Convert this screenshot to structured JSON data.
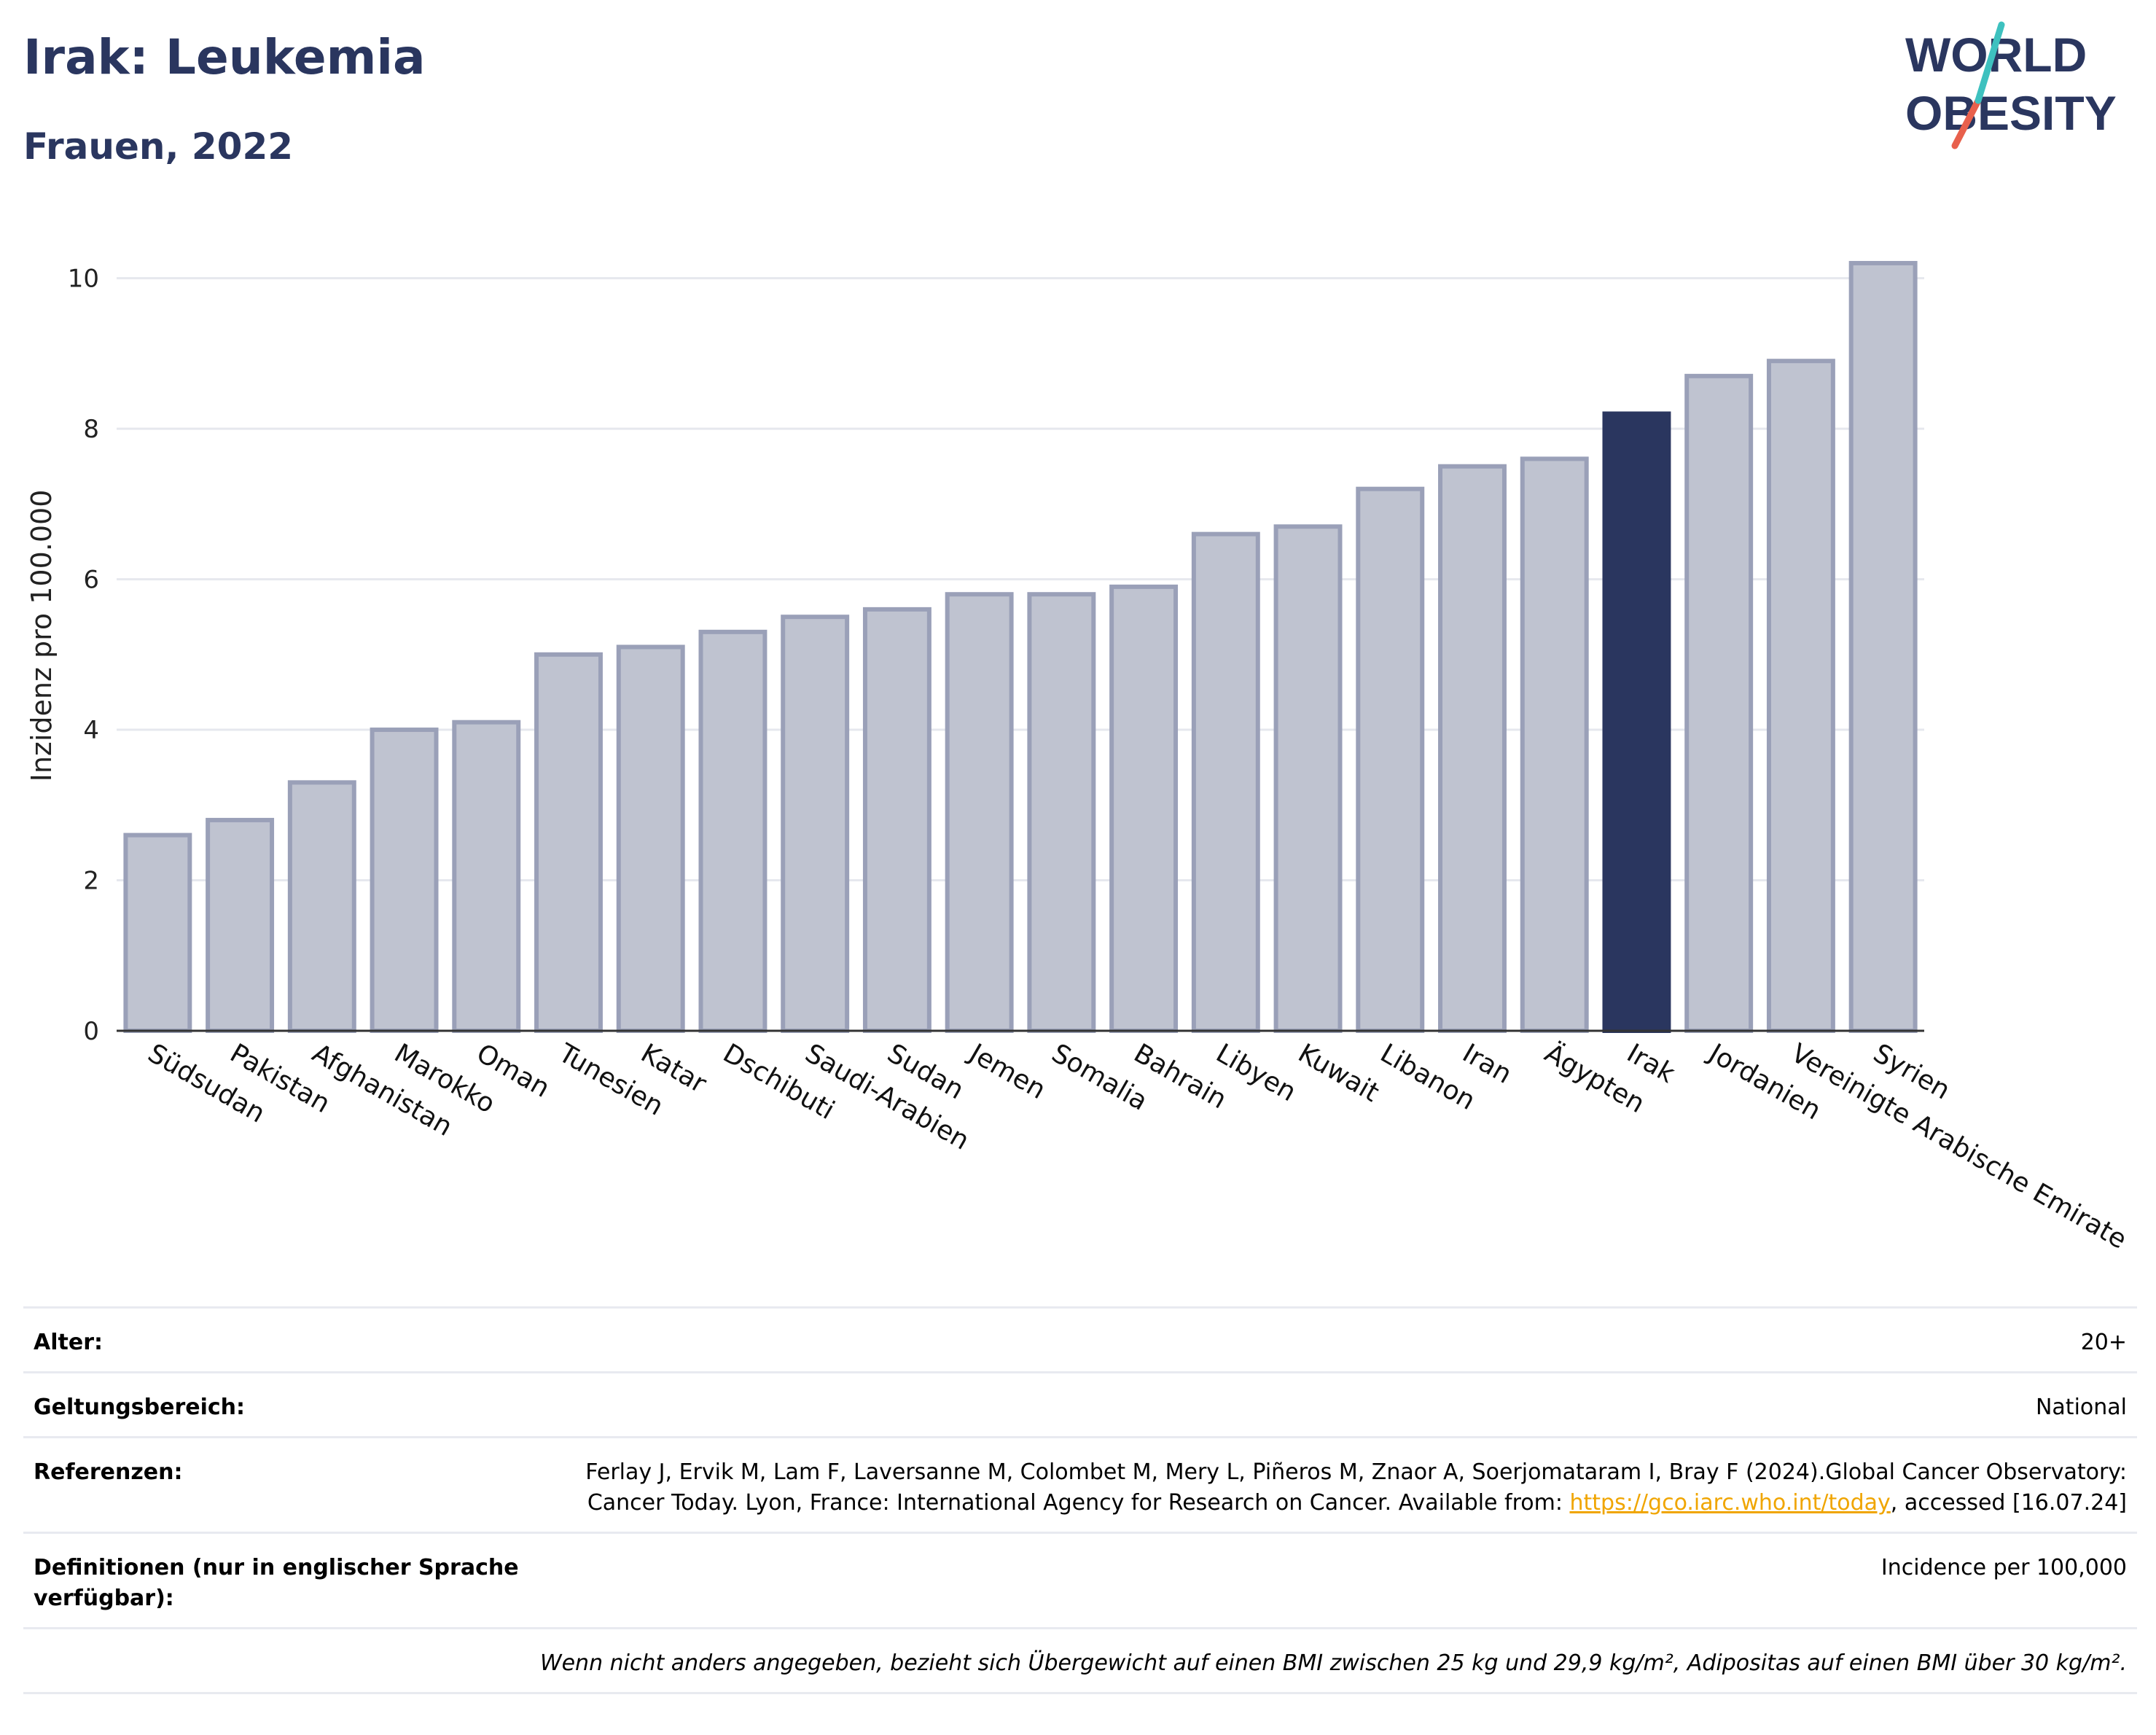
{
  "header": {
    "title": "Irak: Leukemia",
    "subtitle": "Frauen, 2022"
  },
  "logo": {
    "line1": "WORLD",
    "line2": "OBESITY",
    "colors": {
      "text": "#2a365f",
      "slash_teal": "#3ec1bf",
      "slash_red": "#e8604c"
    }
  },
  "chart_data": {
    "type": "bar",
    "categories": [
      "Südsudan",
      "Pakistan",
      "Afghanistan",
      "Marokko",
      "Oman",
      "Tunesien",
      "Katar",
      "Dschibuti",
      "Saudi-Arabien",
      "Sudan",
      "Jemen",
      "Somalia",
      "Bahrain",
      "Libyen",
      "Kuwait",
      "Libanon",
      "Iran",
      "Ägypten",
      "Irak",
      "Jordanien",
      "Vereinigte Arabische Emirate",
      "Syrien"
    ],
    "values": [
      2.6,
      2.8,
      3.3,
      4.0,
      4.1,
      5.0,
      5.1,
      5.3,
      5.5,
      5.6,
      5.8,
      5.8,
      5.9,
      6.6,
      6.7,
      7.2,
      7.5,
      7.6,
      8.2,
      8.7,
      8.9,
      10.2
    ],
    "highlight": "Irak",
    "ylabel": "Inzidenz pro 100.000",
    "ylim": [
      0,
      10.5
    ],
    "yticks": [
      0,
      2,
      4,
      6,
      8,
      10
    ],
    "grid": true,
    "colors": {
      "bar": "#bfc3d0",
      "bar_border": "#9aa0b8",
      "highlight": "#2a365f",
      "grid": "#e6e8ee",
      "axis": "#333333"
    }
  },
  "info": {
    "alter_label": "Alter:",
    "alter_value": "20+",
    "scope_label": "Geltungsbereich:",
    "scope_value": "National",
    "ref_label": "Referenzen:",
    "ref_text_1": "Ferlay J, Ervik M, Lam F, Laversanne M, Colombet M, Mery L, Piñeros M, Znaor A, Soerjomataram I, Bray F (2024).Global Cancer Observatory: Cancer Today. Lyon, France: International Agency for Research on Cancer. Available from: ",
    "ref_link": "https://gco.iarc.who.int/today",
    "ref_text_2": ", accessed [16.07.24]",
    "def_label": "Definitionen (nur in englischer Sprache verfügbar):",
    "def_value": "Incidence per 100,000",
    "note": "Wenn nicht anders angegeben, bezieht sich Übergewicht auf einen BMI zwischen 25 kg und 29,9 kg/m², Adipositas auf einen BMI über 30 kg/m²."
  }
}
